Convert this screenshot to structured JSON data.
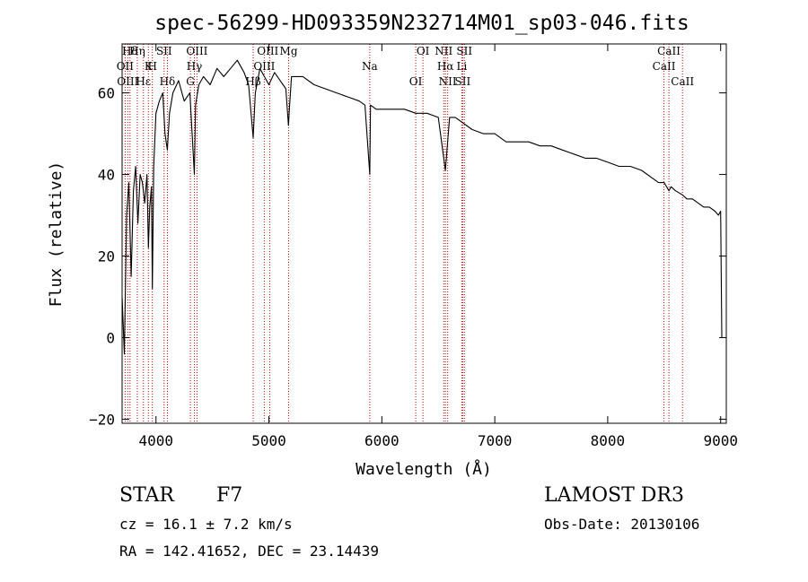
{
  "chart_data": {
    "type": "line",
    "title": "spec-56299-HD093359N232714M01_sp03-046.fits",
    "xlabel": "Wavelength (Å)",
    "ylabel": "Flux (relative)",
    "xlim": [
      3700,
      9050
    ],
    "ylim": [
      -21,
      72
    ],
    "x_ticks": [
      4000,
      5000,
      6000,
      7000,
      8000,
      9000
    ],
    "y_ticks": [
      -20,
      0,
      20,
      40,
      60
    ],
    "x_tick_labels": [
      "4000",
      "5000",
      "6000",
      "7000",
      "8000",
      "9000"
    ],
    "y_tick_labels": [
      "−20",
      "0",
      "20",
      "40",
      "60"
    ],
    "grid": false,
    "series": [
      {
        "name": "flux",
        "color": "#000000",
        "x": [
          3700,
          3720,
          3740,
          3760,
          3780,
          3800,
          3820,
          3840,
          3860,
          3880,
          3900,
          3920,
          3933,
          3945,
          3960,
          3968,
          3980,
          4000,
          4030,
          4060,
          4080,
          4101,
          4120,
          4150,
          4200,
          4250,
          4300,
          4340,
          4350,
          4380,
          4420,
          4480,
          4540,
          4600,
          4660,
          4720,
          4780,
          4820,
          4861,
          4880,
          4920,
          4960,
          5000,
          5050,
          5100,
          5150,
          5173,
          5183,
          5200,
          5300,
          5400,
          5500,
          5600,
          5700,
          5800,
          5850,
          5893,
          5900,
          5950,
          6000,
          6100,
          6200,
          6300,
          6400,
          6500,
          6563,
          6600,
          6650,
          6700,
          6800,
          6900,
          7000,
          7100,
          7200,
          7300,
          7400,
          7500,
          7600,
          7700,
          7800,
          7900,
          8000,
          8100,
          8200,
          8300,
          8400,
          8450,
          8500,
          8542,
          8560,
          8600,
          8662,
          8700,
          8750,
          8800,
          8850,
          8900,
          8950,
          8980,
          9000,
          9010
        ],
        "values": [
          10,
          -4,
          30,
          38,
          15,
          36,
          42,
          28,
          40,
          38,
          33,
          40,
          22,
          32,
          37,
          12,
          42,
          55,
          58,
          60,
          50,
          46,
          55,
          60,
          63,
          58,
          60,
          40,
          57,
          62,
          64,
          62,
          66,
          64,
          66,
          68,
          65,
          62,
          49,
          60,
          66,
          64,
          62,
          65,
          63,
          61,
          52,
          57,
          64,
          64,
          62,
          61,
          60,
          59,
          58,
          57,
          40,
          57,
          56,
          56,
          56,
          56,
          55,
          55,
          54,
          41,
          54,
          54,
          53,
          51,
          50,
          50,
          48,
          48,
          48,
          47,
          47,
          46,
          45,
          44,
          44,
          43,
          42,
          42,
          41,
          39,
          38,
          38,
          36,
          37,
          36,
          35,
          34,
          34,
          33,
          32,
          32,
          31,
          30,
          31,
          0
        ]
      }
    ],
    "line_labels": [
      {
        "label": "Hδ",
        "wavelength": 3770
      },
      {
        "label": "K",
        "wavelength": 3933
      },
      {
        "label": "Hδ",
        "wavelength": 4101
      },
      {
        "label": "OIII",
        "wavelength": 4363
      },
      {
        "label": "OII",
        "wavelength": 3727
      },
      {
        "label": "Hε",
        "wavelength": 3889
      },
      {
        "label": "SII",
        "wavelength": 4072
      },
      {
        "label": "Hγ",
        "wavelength": 4340
      },
      {
        "label": "OIII",
        "wavelength": 3750
      },
      {
        "label": "Hη",
        "wavelength": 3835
      },
      {
        "label": "H",
        "wavelength": 3968
      },
      {
        "label": "G",
        "wavelength": 4305
      },
      {
        "label": "OIII",
        "wavelength": 4990
      },
      {
        "label": "OIII",
        "wavelength": 4959
      },
      {
        "label": "Hβ",
        "wavelength": 4861
      },
      {
        "label": "Mg",
        "wavelength": 5175
      },
      {
        "label": "Na",
        "wavelength": 5893
      },
      {
        "label": "OI",
        "wavelength": 6300
      },
      {
        "label": "OI",
        "wavelength": 6364
      },
      {
        "label": "Hα",
        "wavelength": 6563
      },
      {
        "label": "SII",
        "wavelength": 6716
      },
      {
        "label": "NII",
        "wavelength": 6548
      },
      {
        "label": "Li",
        "wavelength": 6708
      },
      {
        "label": "NII",
        "wavelength": 6583
      },
      {
        "label": "SII",
        "wavelength": 6731
      },
      {
        "label": "CaII",
        "wavelength": 8542
      },
      {
        "label": "CaII",
        "wavelength": 8498
      },
      {
        "label": "CaII",
        "wavelength": 8662
      }
    ],
    "marker_lines": [
      3727,
      3750,
      3770,
      3835,
      3889,
      3933,
      3968,
      4072,
      4101,
      4305,
      4340,
      4363,
      4861,
      4959,
      5007,
      5175,
      5893,
      6300,
      6364,
      6548,
      6563,
      6583,
      6708,
      6716,
      6731,
      8498,
      8542,
      8662
    ],
    "marker_color": "#c00000"
  },
  "info": {
    "object_class": "STAR",
    "subclass": "F7",
    "survey": "LAMOST DR3",
    "redshift_line": "cz = 16.1 ± 7.2 km/s",
    "obs_date": "Obs-Date: 20130106",
    "coords": "RA = 142.41652, DEC =  23.14439"
  }
}
